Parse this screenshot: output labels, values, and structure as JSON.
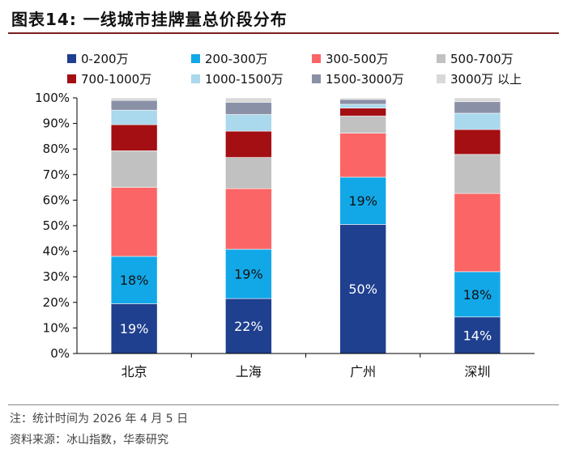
{
  "title": "图表14:  一线城市挂牌量总价段分布",
  "note": "注：统计时间为 2026 年 4 月 5 日",
  "source": "资料来源：冰山指数，华泰研究",
  "chart_data": {
    "type": "bar",
    "stacked": true,
    "categories": [
      "北京",
      "上海",
      "广州",
      "深圳"
    ],
    "series": [
      {
        "name": "0-200万",
        "color": "#1f3f8f",
        "values": [
          19.5,
          21.5,
          50.5,
          14.3
        ],
        "labels": [
          "19%",
          "22%",
          "50%",
          "14%"
        ]
      },
      {
        "name": "200-300万",
        "color": "#12a8e8",
        "values": [
          18.5,
          19.3,
          18.5,
          17.7
        ],
        "labels": [
          "18%",
          "19%",
          "19%",
          "18%"
        ]
      },
      {
        "name": "300-500万",
        "color": "#fc6565",
        "values": [
          27.0,
          23.7,
          17.2,
          30.6
        ],
        "labels": [
          "",
          "",
          "",
          ""
        ]
      },
      {
        "name": "500-700万",
        "color": "#c1c1c1",
        "values": [
          14.3,
          12.2,
          6.7,
          15.3
        ],
        "labels": [
          "",
          "",
          "",
          ""
        ]
      },
      {
        "name": "700-1000万",
        "color": "#a30f13",
        "values": [
          10.2,
          10.3,
          3.1,
          9.7
        ],
        "labels": [
          "",
          "",
          "",
          ""
        ]
      },
      {
        "name": "1000-1500万",
        "color": "#aad8ec",
        "values": [
          5.7,
          6.5,
          1.5,
          6.4
        ],
        "labels": [
          "",
          "",
          "",
          ""
        ]
      },
      {
        "name": "1500-3000万",
        "color": "#8a90a6",
        "values": [
          3.8,
          4.8,
          1.9,
          4.5
        ],
        "labels": [
          "",
          "",
          "",
          ""
        ]
      },
      {
        "name": "3000万 以上",
        "color": "#d9d9d9",
        "values": [
          1.0,
          1.7,
          0.6,
          1.5
        ],
        "labels": [
          "",
          "",
          "",
          ""
        ]
      }
    ],
    "yticks": [
      "0%",
      "10%",
      "20%",
      "30%",
      "40%",
      "50%",
      "60%",
      "70%",
      "80%",
      "90%",
      "100%"
    ],
    "ylim": [
      0,
      100
    ],
    "legend_position": "top",
    "grid": false
  }
}
